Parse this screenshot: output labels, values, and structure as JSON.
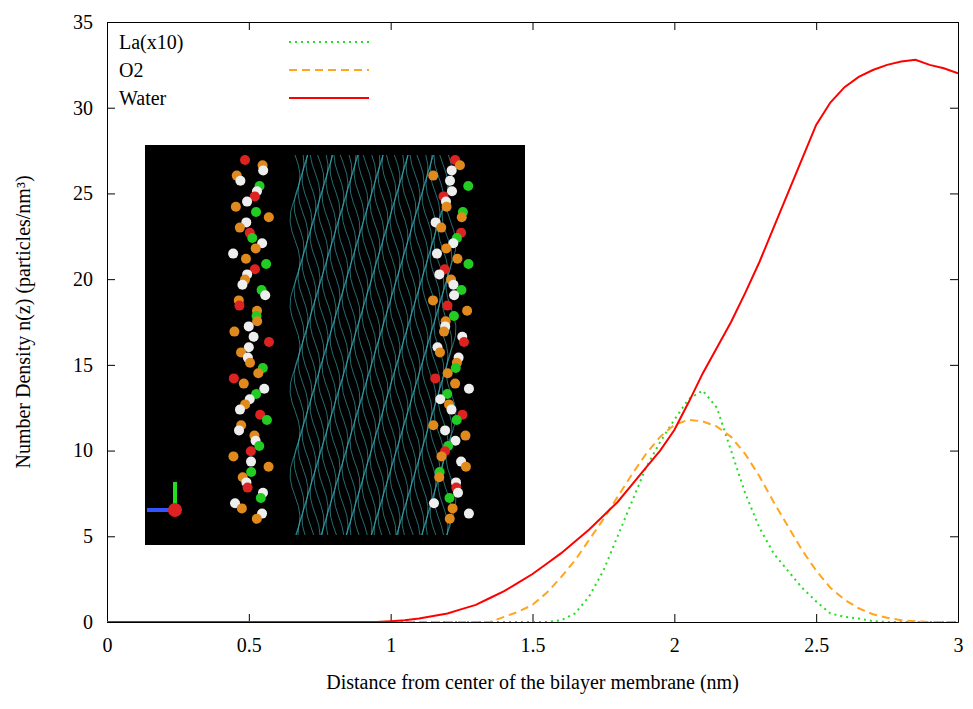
{
  "chart_data": {
    "type": "line",
    "x_label": "Distance from center of the bilayer membrane (nm)",
    "y_label": "Number Density n(z) (particles/nm³)",
    "x": [
      0,
      0.05,
      0.1,
      0.15,
      0.2,
      0.25,
      0.3,
      0.35,
      0.4,
      0.45,
      0.5,
      0.55,
      0.6,
      0.65,
      0.7,
      0.75,
      0.8,
      0.85,
      0.9,
      0.95,
      1,
      1.05,
      1.1,
      1.15,
      1.2,
      1.25,
      1.3,
      1.35,
      1.4,
      1.45,
      1.5,
      1.55,
      1.6,
      1.65,
      1.7,
      1.75,
      1.8,
      1.85,
      1.9,
      1.95,
      2,
      2.05,
      2.1,
      2.15,
      2.2,
      2.25,
      2.3,
      2.35,
      2.4,
      2.45,
      2.5,
      2.55,
      2.6,
      2.65,
      2.7,
      2.75,
      2.8,
      2.85,
      2.9,
      2.95,
      3
    ],
    "series": [
      {
        "name": "La(x10)",
        "color": "#22dd22",
        "line_style": "dotted",
        "values": [
          0,
          0,
          0,
          0,
          0,
          0,
          0,
          0,
          0,
          0,
          0,
          0,
          0,
          0,
          0,
          0,
          0,
          0,
          0,
          0,
          0,
          0,
          0,
          0,
          0,
          0,
          0,
          0,
          0,
          0,
          0,
          0,
          0.1,
          0.5,
          1.5,
          3.0,
          5.0,
          7.0,
          9.0,
          10.5,
          11.8,
          13.0,
          13.5,
          12.5,
          10.0,
          7.5,
          5.5,
          4.0,
          3.0,
          2.0,
          1.2,
          0.5,
          0.3,
          0.2,
          0.05,
          0,
          0,
          0,
          0,
          0,
          0
        ]
      },
      {
        "name": "O2",
        "color": "#ffa520",
        "line_style": "dashed",
        "values": [
          0,
          0,
          0,
          0,
          0,
          0,
          0,
          0,
          0,
          0,
          0,
          0,
          0,
          0,
          0,
          0,
          0,
          0,
          0,
          0,
          0,
          0,
          0,
          0,
          0,
          0,
          0,
          0,
          0.3,
          0.6,
          1.0,
          1.7,
          2.6,
          3.6,
          4.8,
          6.0,
          7.3,
          8.6,
          9.8,
          10.8,
          11.5,
          11.8,
          11.7,
          11.4,
          10.8,
          9.8,
          8.5,
          7.0,
          5.6,
          4.2,
          3.0,
          2.0,
          1.3,
          0.8,
          0.45,
          0.25,
          0.1,
          0.05,
          0,
          0,
          0
        ]
      },
      {
        "name": "Water",
        "color": "#ff0000",
        "line_style": "solid",
        "values": [
          0,
          0,
          0,
          0,
          0,
          0,
          0,
          0,
          0,
          0,
          0,
          0,
          0,
          0,
          0,
          0,
          0,
          0,
          0,
          0,
          0.05,
          0.1,
          0.2,
          0.35,
          0.5,
          0.75,
          1.0,
          1.4,
          1.8,
          2.3,
          2.8,
          3.4,
          4.0,
          4.7,
          5.4,
          6.2,
          7.0,
          8.0,
          9.0,
          10.0,
          11.2,
          12.8,
          14.5,
          16.0,
          17.5,
          19.2,
          21.0,
          23.0,
          25.0,
          27.0,
          29.0,
          30.3,
          31.2,
          31.8,
          32.2,
          32.5,
          32.7,
          32.8,
          32.5,
          32.3,
          32.0
        ]
      }
    ],
    "xlim": [
      0,
      3
    ],
    "ylim": [
      0,
      35
    ],
    "xticks": [
      0,
      0.5,
      1,
      1.5,
      2,
      2.5,
      3
    ],
    "yticks": [
      0,
      5,
      10,
      15,
      20,
      25,
      30,
      35
    ],
    "grid": false,
    "legend": "top-left"
  }
}
